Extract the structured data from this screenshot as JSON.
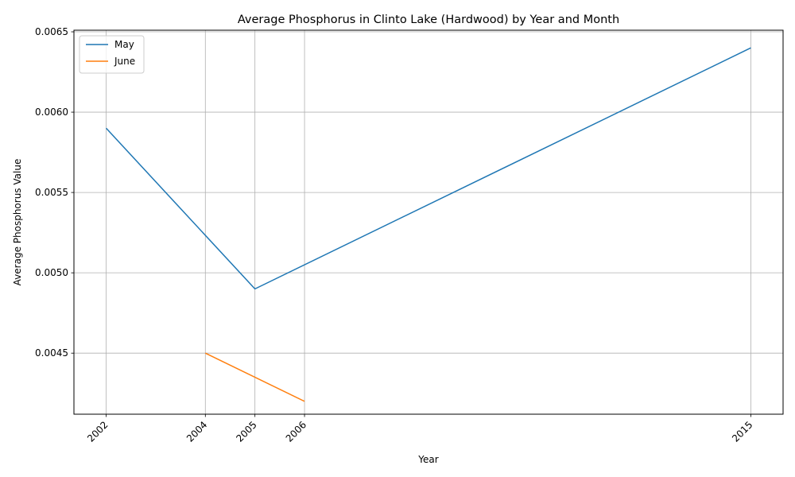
{
  "chart_data": {
    "type": "line",
    "title": "Average Phosphorus in Clinto Lake (Hardwood) by Year and Month",
    "xlabel": "Year",
    "ylabel": "Average Phosphorus Value",
    "xlim": [
      2001.35,
      2015.65
    ],
    "ylim": [
      0.00412,
      0.00651
    ],
    "x_ticks": [
      2002,
      2004,
      2005,
      2006,
      2015
    ],
    "y_ticks": [
      0.0045,
      0.005,
      0.0055,
      0.006,
      0.0065
    ],
    "y_tick_labels": [
      "0.0045",
      "0.0050",
      "0.0055",
      "0.0060",
      "0.0065"
    ],
    "grid": true,
    "legend_position": "top-left",
    "series": [
      {
        "name": "May",
        "color": "#1f77b4",
        "x": [
          2002,
          2005,
          2015
        ],
        "y": [
          0.0059,
          0.0049,
          0.0064
        ]
      },
      {
        "name": "June",
        "color": "#ff7f0e",
        "x": [
          2004,
          2006
        ],
        "y": [
          0.0045,
          0.0042
        ]
      }
    ]
  }
}
